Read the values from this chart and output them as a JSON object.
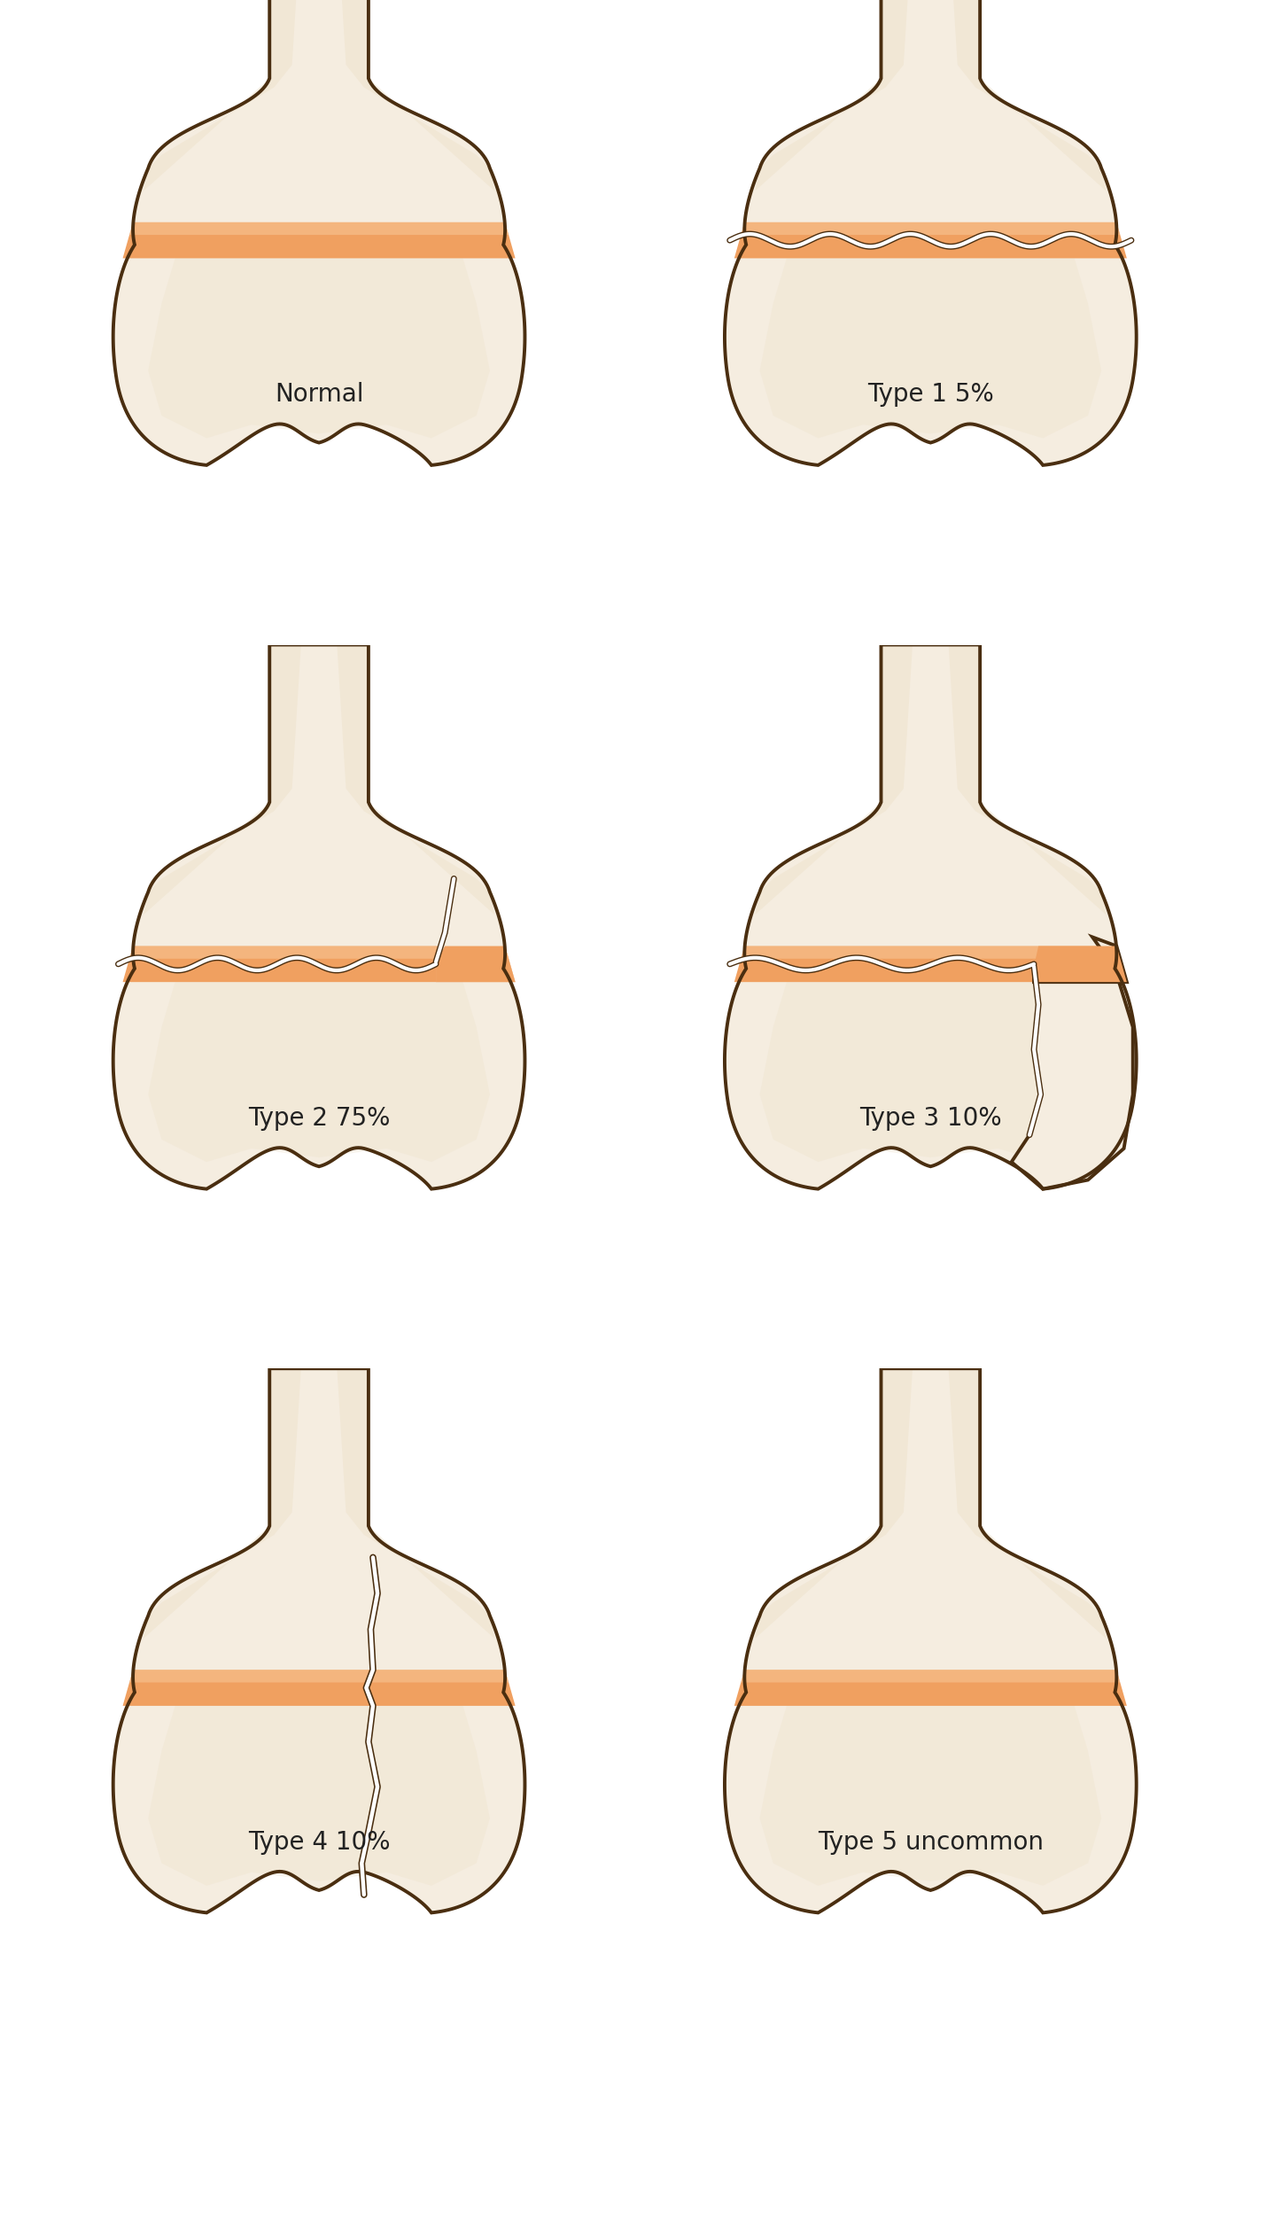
{
  "background": "#ffffff",
  "bone_light": "#f5ede0",
  "bone_mid": "#ede0c8",
  "bone_dark": "#ddd0b5",
  "outline": "#4a2e10",
  "physis": "#f0a060",
  "physis_hi": "#f8c898",
  "crack_w": "#ffffff",
  "crack_d": "#4a2e10",
  "lw": 2.8,
  "labels": [
    "Normal",
    "Type 1 5%",
    "Type 2 75%",
    "Type 3 10%",
    "Type 4 10%",
    "Type 5 uncommon"
  ],
  "label_fs": 20,
  "fig_w": 14.38,
  "fig_h": 25.13
}
